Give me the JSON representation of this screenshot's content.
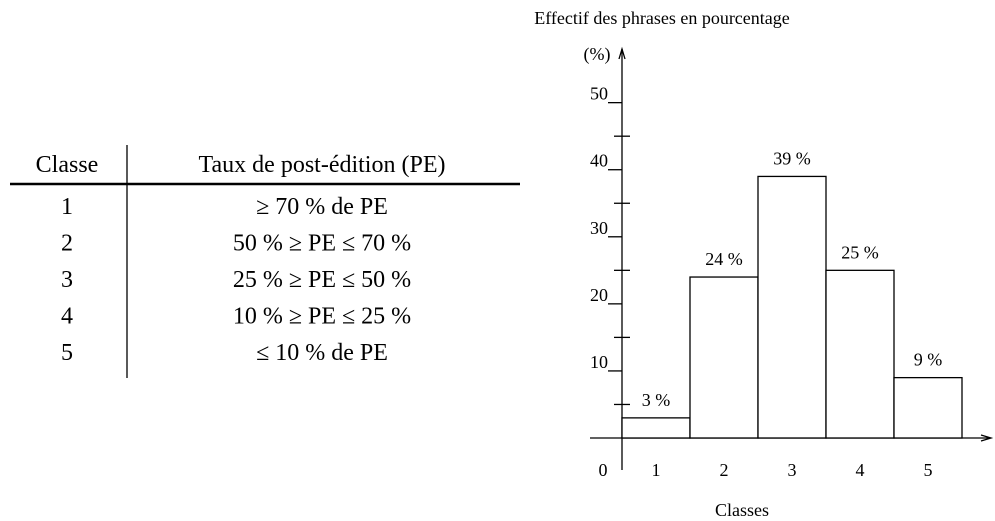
{
  "table": {
    "header": [
      "Classe",
      "Taux de post-édition (PE)"
    ],
    "rows": [
      [
        "1",
        "≥ 70 % de PE"
      ],
      [
        "2",
        "50 % ≥ PE ≤ 70 %"
      ],
      [
        "3",
        "25 % ≥ PE ≤ 50 %"
      ],
      [
        "4",
        "10 % ≥ PE ≤ 25 %"
      ],
      [
        "5",
        "≤ 10 % de PE"
      ]
    ]
  },
  "chart_data": {
    "type": "bar",
    "title": "Effectif des phrases en pourcentage",
    "ylabel": "(%)",
    "xlabel": "Classes",
    "categories": [
      "1",
      "2",
      "3",
      "4",
      "5"
    ],
    "values": [
      3,
      24,
      39,
      25,
      9
    ],
    "value_labels": [
      "3 %",
      "24 %",
      "39 %",
      "25 %",
      "9 %"
    ],
    "color": "#ffffff",
    "ylim": [
      0,
      58
    ],
    "yticks": [
      0,
      10,
      20,
      30,
      40,
      50
    ],
    "yminor_ticks": [
      5,
      15,
      25,
      35,
      45
    ]
  }
}
